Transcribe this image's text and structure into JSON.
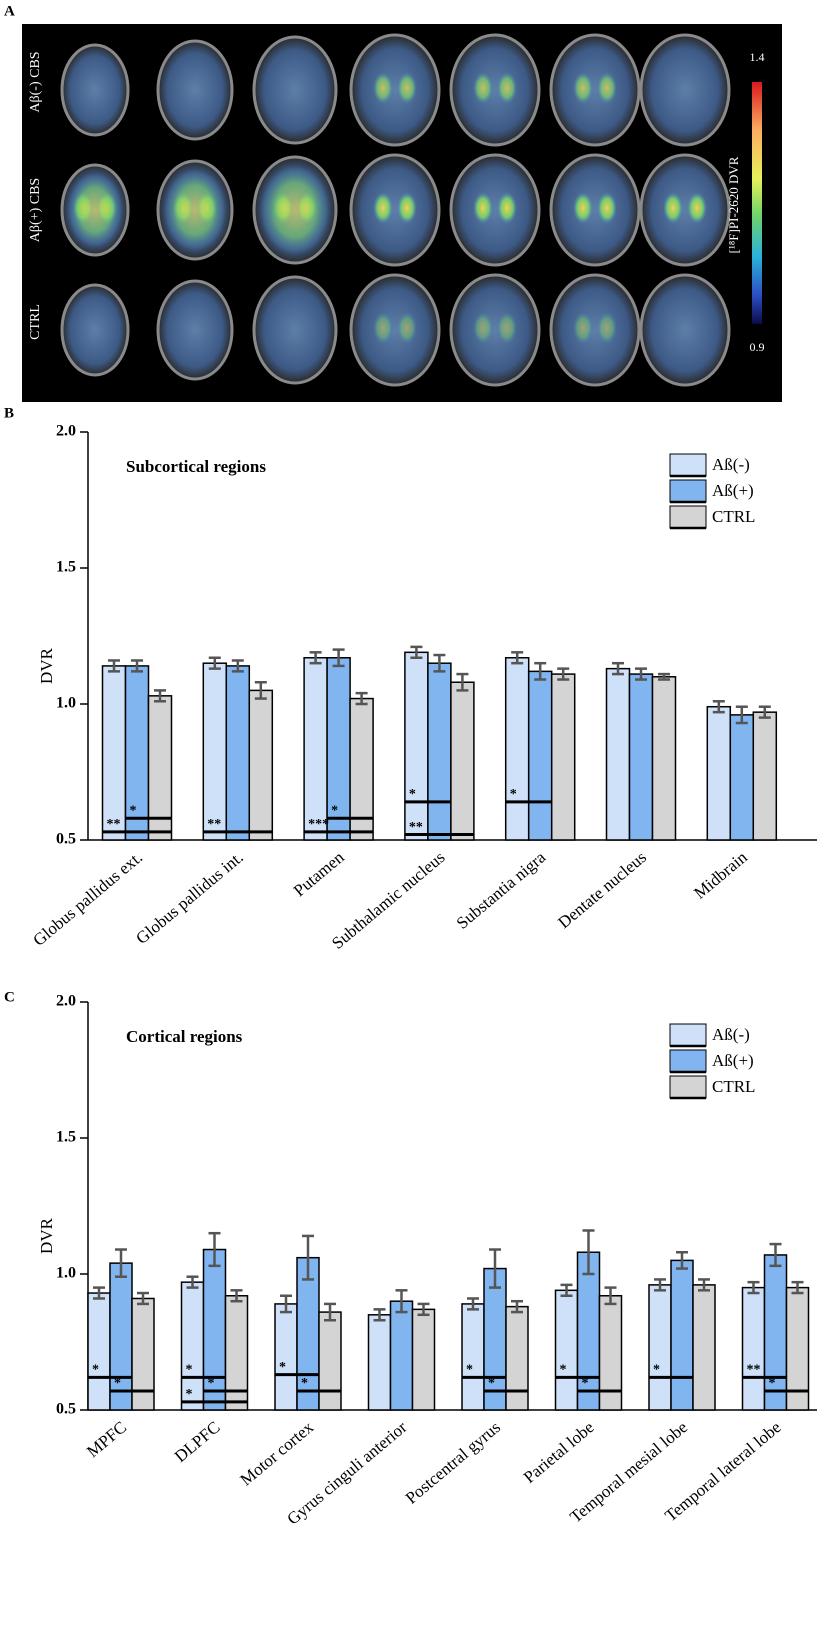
{
  "panel_labels": [
    "A",
    "B",
    "C"
  ],
  "panel_a": {
    "rows": [
      "Aβ(-) CBS",
      "Aβ(+) CBS",
      "CTRL"
    ],
    "colorbar": {
      "max": "1.4",
      "min": "0.9",
      "label": "[¹⁸F]PI-2620 DVR"
    }
  },
  "chart_data": [
    {
      "type": "bar",
      "title": "Subcortical regions",
      "y_label": "DVR",
      "categories": [
        "Globus pallidus ext.",
        "Globus pallidus int.",
        "Putamen",
        "Subthalamic nucleus",
        "Substantia nigra",
        "Dentate nucleus",
        "Midbrain"
      ],
      "series": [
        {
          "name": "Aß(-)",
          "color": "#cfe1f9",
          "values": [
            1.14,
            1.15,
            1.17,
            1.19,
            1.17,
            1.13,
            0.99
          ],
          "errors": [
            0.02,
            0.02,
            0.02,
            0.02,
            0.02,
            0.02,
            0.02
          ]
        },
        {
          "name": "Aß(+)",
          "color": "#80b5f0",
          "values": [
            1.14,
            1.14,
            1.17,
            1.15,
            1.12,
            1.11,
            0.96
          ],
          "errors": [
            0.02,
            0.02,
            0.03,
            0.03,
            0.03,
            0.02,
            0.03
          ]
        },
        {
          "name": "CTRL",
          "color": "#d4d4d4",
          "values": [
            1.03,
            1.05,
            1.02,
            1.08,
            1.11,
            1.1,
            0.97
          ],
          "errors": [
            0.02,
            0.03,
            0.02,
            0.03,
            0.02,
            0.01,
            0.02
          ]
        }
      ],
      "ylim": [
        0.5,
        2.0
      ],
      "yticks": [
        0.5,
        {
          "value": 1,
          "label": "1.0"
        },
        1.5,
        {
          "value": 2,
          "label": "2.0"
        }
      ],
      "legend": "upper right",
      "annotations": [
        {
          "text": "**",
          "category": 0,
          "y": 0.53,
          "pair": [
            0,
            2
          ]
        },
        {
          "text": "*",
          "category": 0,
          "y": 0.58,
          "pair": [
            1,
            2
          ]
        },
        {
          "text": "**",
          "category": 1,
          "y": 0.53,
          "pair": [
            0,
            2
          ]
        },
        {
          "text": "***",
          "category": 2,
          "y": 0.53,
          "pair": [
            0,
            2
          ]
        },
        {
          "text": "*",
          "category": 2,
          "y": 0.58,
          "pair": [
            1,
            2
          ]
        },
        {
          "text": "*",
          "category": 3,
          "y": 0.64,
          "pair": [
            0,
            1
          ]
        },
        {
          "text": "**",
          "category": 3,
          "y": 0.52,
          "pair": [
            0,
            2
          ]
        },
        {
          "text": "*",
          "category": 4,
          "y": 0.64,
          "pair": [
            0,
            1
          ]
        }
      ]
    },
    {
      "type": "bar",
      "title": "Cortical regions",
      "y_label": "DVR",
      "categories": [
        "MPFC",
        "DLPFC",
        "Motor cortex",
        "Gyrus cinguli anterior",
        "Postcentral gyrus",
        "Parietal lobe",
        "Temporal mesial lobe",
        "Temporal lateral lobe"
      ],
      "series": [
        {
          "name": "Aß(-)",
          "color": "#cfe1f9",
          "values": [
            0.93,
            0.97,
            0.89,
            0.85,
            0.89,
            0.94,
            0.96,
            0.95
          ],
          "errors": [
            0.02,
            0.02,
            0.03,
            0.02,
            0.02,
            0.02,
            0.02,
            0.02
          ]
        },
        {
          "name": "Aß(+)",
          "color": "#80b5f0",
          "values": [
            1.04,
            1.09,
            1.06,
            0.9,
            1.02,
            1.08,
            1.05,
            1.07
          ],
          "errors": [
            0.05,
            0.06,
            0.08,
            0.04,
            0.07,
            0.08,
            0.03,
            0.04
          ]
        },
        {
          "name": "CTRL",
          "color": "#d4d4d4",
          "values": [
            0.91,
            0.92,
            0.86,
            0.87,
            0.88,
            0.92,
            0.96,
            0.95
          ],
          "errors": [
            0.02,
            0.02,
            0.03,
            0.02,
            0.02,
            0.03,
            0.02,
            0.02
          ]
        }
      ],
      "ylim": [
        0.5,
        2.0
      ],
      "yticks": [
        0.5,
        {
          "value": 1,
          "label": "1.0"
        },
        1.5,
        {
          "value": 2,
          "label": "2.0"
        }
      ],
      "legend": "upper right",
      "annotations": [
        {
          "text": "*",
          "category": 0,
          "y": 0.62,
          "pair": [
            0,
            1
          ]
        },
        {
          "text": "*",
          "category": 0,
          "y": 0.57,
          "pair": [
            1,
            2
          ]
        },
        {
          "text": "*",
          "category": 1,
          "y": 0.62,
          "pair": [
            0,
            1
          ]
        },
        {
          "text": "*",
          "category": 1,
          "y": 0.57,
          "pair": [
            1,
            2
          ]
        },
        {
          "text": "*",
          "category": 1,
          "y": 0.53,
          "pair": [
            0,
            2
          ]
        },
        {
          "text": "*",
          "category": 2,
          "y": 0.63,
          "pair": [
            0,
            1
          ]
        },
        {
          "text": "*",
          "category": 2,
          "y": 0.57,
          "pair": [
            1,
            2
          ]
        },
        {
          "text": "*",
          "category": 4,
          "y": 0.62,
          "pair": [
            0,
            1
          ]
        },
        {
          "text": "*",
          "category": 4,
          "y": 0.57,
          "pair": [
            1,
            2
          ]
        },
        {
          "text": "*",
          "category": 5,
          "y": 0.62,
          "pair": [
            0,
            1
          ]
        },
        {
          "text": "*",
          "category": 5,
          "y": 0.57,
          "pair": [
            1,
            2
          ]
        },
        {
          "text": "*",
          "category": 6,
          "y": 0.62,
          "pair": [
            0,
            1
          ]
        },
        {
          "text": "**",
          "category": 7,
          "y": 0.62,
          "pair": [
            0,
            1
          ]
        },
        {
          "text": "*",
          "category": 7,
          "y": 0.57,
          "pair": [
            1,
            2
          ]
        }
      ]
    }
  ]
}
